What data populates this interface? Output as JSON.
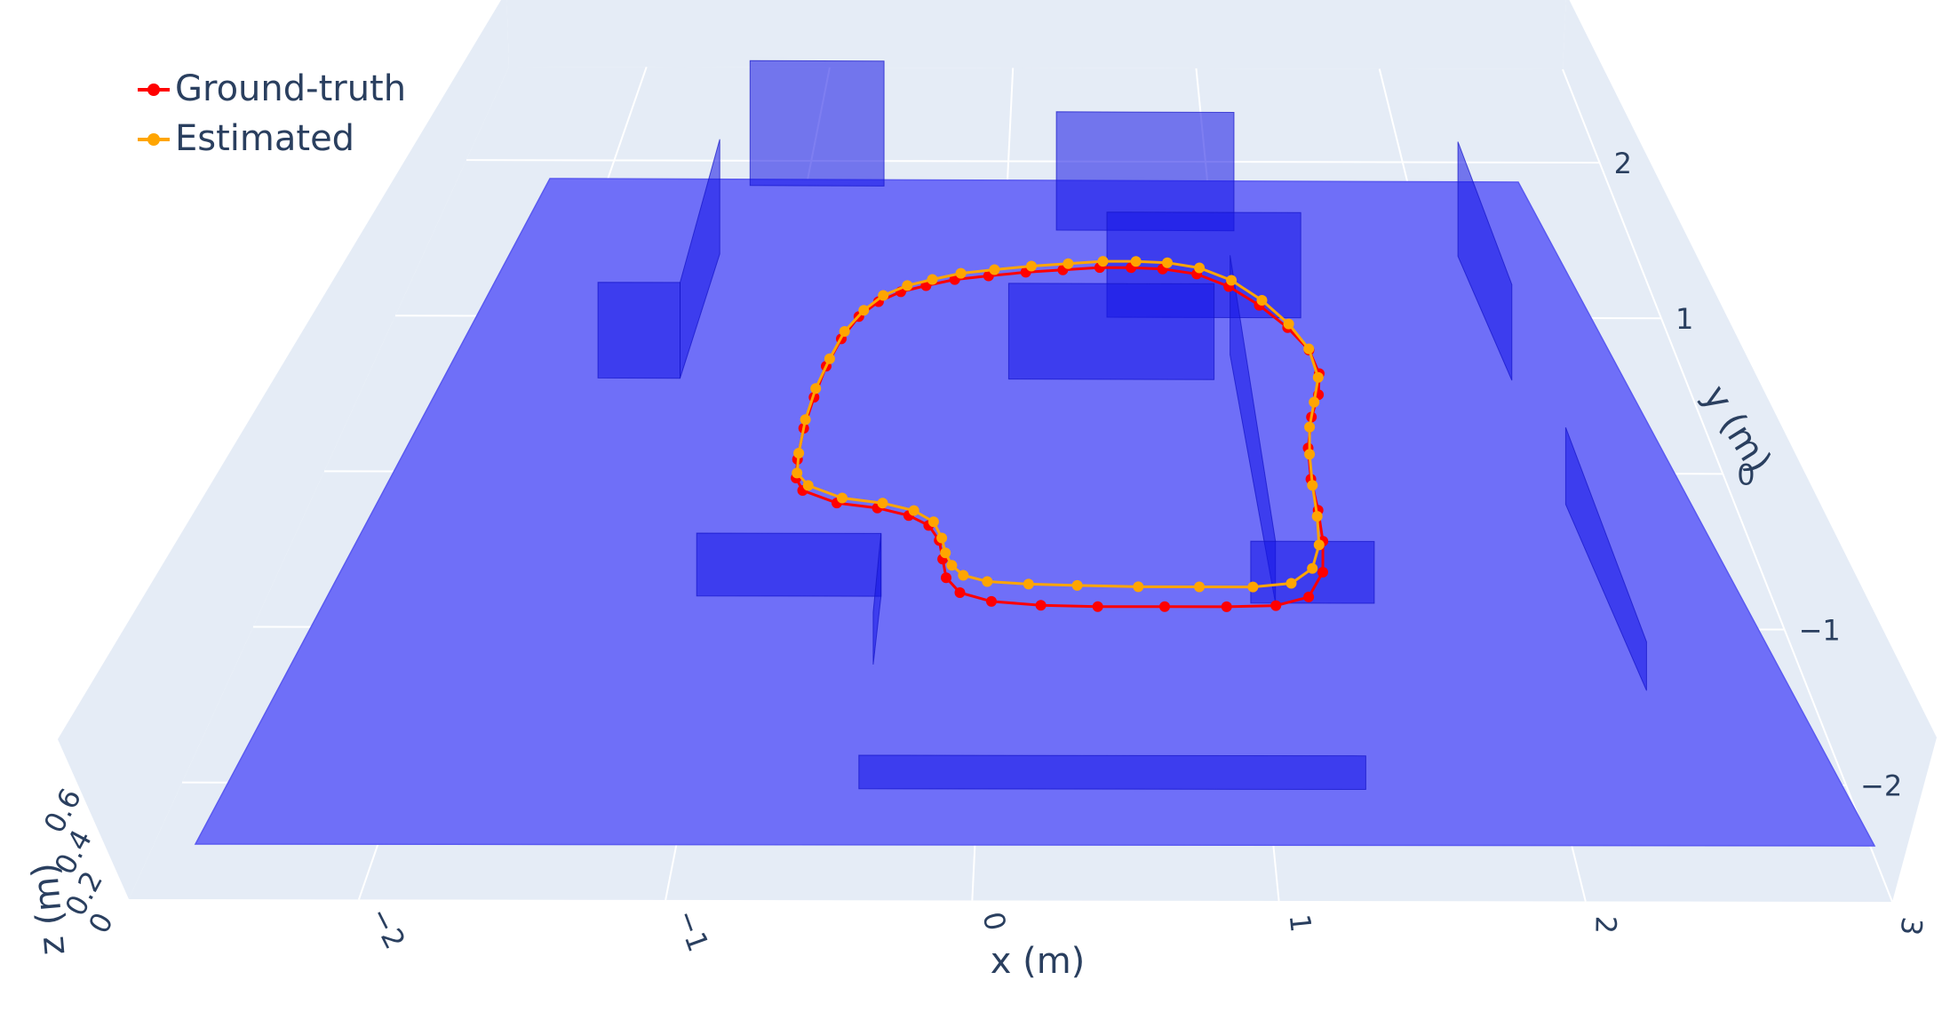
{
  "chart_data": {
    "type": "scatter3d",
    "xlabel": "x (m)",
    "ylabel": "y (m)",
    "zlabel": "z (m)",
    "xlim": [
      -2.75,
      3.0
    ],
    "ylim": [
      -2.75,
      2.6
    ],
    "zlim": [
      0,
      0.6
    ],
    "x_ticks": [
      "−2",
      "−1",
      "0",
      "1",
      "2",
      "3"
    ],
    "x_tick_values": [
      -2,
      -1,
      0,
      1,
      2,
      3
    ],
    "y_ticks": [
      "2",
      "1",
      "0",
      "−1",
      "−2"
    ],
    "y_tick_values": [
      2,
      1,
      0,
      -1,
      -2
    ],
    "z_ticks": [
      "0",
      "0.2",
      "0.4",
      "0.6"
    ],
    "z_tick_values": [
      0,
      0.2,
      0.4,
      0.6
    ],
    "legend_position": "top-left",
    "floor": {
      "x": [
        -2.75,
        3.0
      ],
      "y": [
        -2.75,
        2.6
      ],
      "z": 0,
      "color": "#6f6ff8"
    },
    "obstacles": [
      {
        "x": [
          -1.55,
          -0.76
        ],
        "y": [
          2.55,
          2.55
        ],
        "z": [
          0,
          0.5
        ]
      },
      {
        "x": [
          0.25,
          1.25
        ],
        "y": [
          2.2,
          2.2
        ],
        "z": [
          0,
          0.5
        ]
      },
      {
        "x": [
          -1.6,
          -1.6
        ],
        "y": [
          1.0,
          2.0
        ],
        "z": [
          0,
          0.5
        ]
      },
      {
        "x": [
          -2.0,
          -1.6
        ],
        "y": [
          1.0,
          1.0
        ],
        "z": [
          0,
          0.5
        ]
      },
      {
        "x": [
          0.5,
          1.5
        ],
        "y": [
          1.5,
          1.5
        ],
        "z": [
          0,
          0.5
        ]
      },
      {
        "x": [
          0.0,
          1.0
        ],
        "y": [
          1.0,
          1.0
        ],
        "z": [
          0,
          0.5
        ]
      },
      {
        "x": [
          1.1,
          1.1
        ],
        "y": [
          -0.8,
          1.2
        ],
        "z": [
          0,
          0.5
        ]
      },
      {
        "x": [
          1.0,
          1.5
        ],
        "y": [
          -0.8,
          -0.8
        ],
        "z": [
          0,
          0.5
        ]
      },
      {
        "x": [
          -1.25,
          -0.5
        ],
        "y": [
          -0.75,
          -0.75
        ],
        "z": [
          0,
          0.5
        ]
      },
      {
        "x": [
          -0.5,
          -0.5
        ],
        "y": [
          -1.3,
          -0.75
        ],
        "z": [
          0,
          0.5
        ]
      },
      {
        "x": [
          -0.5,
          1.3
        ],
        "y": [
          -2.3,
          -2.3
        ],
        "z": [
          0,
          0.5
        ]
      },
      {
        "x": [
          2.45,
          2.45
        ],
        "y": [
          1.0,
          2.0
        ],
        "z": [
          0,
          0.5
        ]
      },
      {
        "x": [
          2.45,
          2.45
        ],
        "y": [
          -1.5,
          0.0
        ],
        "z": [
          0,
          0.5
        ]
      }
    ],
    "series": [
      {
        "name": "Ground-truth",
        "color": "#ff0000",
        "x": [
          -0.95,
          -0.95,
          -0.93,
          -0.9,
          -0.85,
          -0.78,
          -0.69,
          -0.58,
          -0.45,
          -0.3,
          -0.12,
          0.08,
          0.28,
          0.48,
          0.65,
          0.82,
          1.0,
          1.16,
          1.3,
          1.42,
          1.5,
          1.52,
          1.49,
          1.43,
          1.38,
          1.36,
          1.36,
          1.35,
          1.32,
          1.24,
          1.1,
          0.9,
          0.65,
          0.38,
          0.15,
          -0.05,
          -0.18,
          -0.24,
          -0.26,
          -0.28,
          -0.33,
          -0.42,
          -0.56,
          -0.74,
          -0.9,
          -0.94
        ],
        "y": [
          0.35,
          0.6,
          0.85,
          1.1,
          1.32,
          1.5,
          1.62,
          1.7,
          1.75,
          1.8,
          1.83,
          1.86,
          1.88,
          1.9,
          1.9,
          1.89,
          1.85,
          1.75,
          1.6,
          1.42,
          1.24,
          1.05,
          0.88,
          0.7,
          0.45,
          0.2,
          -0.05,
          -0.3,
          -0.55,
          -0.75,
          -0.82,
          -0.83,
          -0.83,
          -0.83,
          -0.82,
          -0.79,
          -0.72,
          -0.6,
          -0.45,
          -0.3,
          -0.18,
          -0.1,
          -0.04,
          0.0,
          0.1,
          0.2
        ],
        "z": [
          0,
          0,
          0,
          0,
          0,
          0,
          0,
          0,
          0,
          0,
          0,
          0,
          0,
          0,
          0,
          0,
          0,
          0,
          0,
          0,
          0,
          0,
          0,
          0,
          0,
          0,
          0,
          0,
          0,
          0,
          0,
          0,
          0,
          0,
          0,
          0,
          0,
          0,
          0,
          0,
          0,
          0,
          0,
          0,
          0,
          0
        ]
      },
      {
        "name": "Estimated",
        "color": "#ffa500",
        "x": [
          -0.95,
          -0.95,
          -0.93,
          -0.89,
          -0.84,
          -0.76,
          -0.67,
          -0.55,
          -0.42,
          -0.27,
          -0.09,
          0.11,
          0.31,
          0.5,
          0.68,
          0.85,
          1.02,
          1.18,
          1.32,
          1.43,
          1.5,
          1.51,
          1.46,
          1.41,
          1.38,
          1.36,
          1.35,
          1.33,
          1.28,
          1.18,
          1.02,
          0.8,
          0.55,
          0.3,
          0.1,
          -0.07,
          -0.17,
          -0.22,
          -0.25,
          -0.27,
          -0.31,
          -0.4,
          -0.54,
          -0.72,
          -0.88,
          -0.94
        ],
        "y": [
          0.4,
          0.67,
          0.92,
          1.16,
          1.38,
          1.55,
          1.67,
          1.75,
          1.8,
          1.85,
          1.88,
          1.91,
          1.93,
          1.95,
          1.95,
          1.94,
          1.9,
          1.8,
          1.64,
          1.45,
          1.25,
          1.02,
          0.82,
          0.62,
          0.4,
          0.15,
          -0.1,
          -0.33,
          -0.52,
          -0.64,
          -0.67,
          -0.67,
          -0.67,
          -0.66,
          -0.65,
          -0.63,
          -0.58,
          -0.5,
          -0.4,
          -0.28,
          -0.15,
          -0.06,
          0.0,
          0.04,
          0.14,
          0.24
        ],
        "z": [
          0,
          0,
          0,
          0,
          0,
          0,
          0,
          0,
          0,
          0,
          0,
          0,
          0,
          0,
          0,
          0,
          0,
          0,
          0,
          0,
          0,
          0,
          0,
          0,
          0,
          0,
          0,
          0,
          0,
          0,
          0,
          0,
          0,
          0,
          0,
          0,
          0,
          0,
          0,
          0,
          0,
          0,
          0,
          0,
          0,
          0
        ]
      }
    ]
  }
}
